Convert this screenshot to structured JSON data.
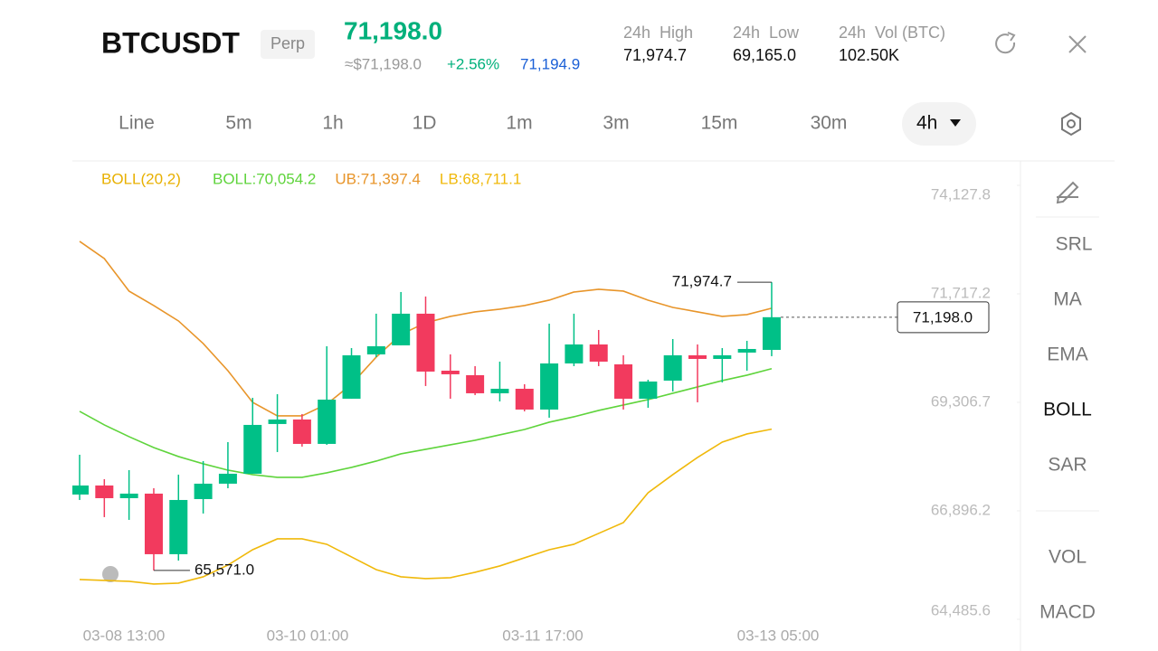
{
  "header": {
    "symbol": "BTCUSDT",
    "badge": "Perp",
    "price": "71,198.0",
    "approx": "≈$71,198.0",
    "change": "+2.56%",
    "mark_price": "71,194.9",
    "stats": [
      {
        "label": "24h  High",
        "value": "71,974.7"
      },
      {
        "label": "24h  Low",
        "value": "69,165.0"
      },
      {
        "label": "24h  Vol (BTC)",
        "value": "102.50K"
      }
    ]
  },
  "timeframes": [
    "Line",
    "5m",
    "1h",
    "1D",
    "1m",
    "3m",
    "15m",
    "30m"
  ],
  "selected_timeframe": "4h",
  "indicators": [
    "SRL",
    "MA",
    "EMA",
    "BOLL",
    "SAR",
    "VOL",
    "MACD"
  ],
  "active_indicator": "BOLL",
  "chart_data": {
    "type": "candlestick",
    "indicator_label": "BOLL(20,2)",
    "indicator_label_color": "#e8b000",
    "up_color": "#00c087",
    "down_color": "#f23a5e",
    "open": [
      67258,
      67459,
      67177,
      67278,
      65932,
      67157,
      67499,
      67720,
      68825,
      68925,
      68383,
      69387,
      70372,
      70573,
      71276,
      70010,
      69910,
      69508,
      69608,
      69146,
      70171,
      70593,
      70151,
      69387,
      69789,
      70352,
      70271,
      70412,
      70472
    ],
    "high": [
      68142,
      67599,
      67800,
      67398,
      67700,
      68001,
      68423,
      69407,
      69488,
      69046,
      70553,
      70512,
      71276,
      71758,
      71658,
      70372,
      70111,
      70211,
      69709,
      71055,
      71276,
      70914,
      70352,
      69809,
      70713,
      70593,
      70512,
      70673,
      71974.7
    ],
    "low": [
      67137,
      66756,
      66695,
      65571,
      65791,
      66836,
      67398,
      67720,
      68202,
      68323,
      68363,
      69387,
      70312,
      70573,
      69669,
      69387,
      69468,
      69327,
      69106,
      68965,
      70111,
      70111,
      69146,
      69186,
      69548,
      69307,
      69749,
      70010,
      70332
    ],
    "close": [
      67459,
      67177,
      67278,
      65932,
      67137,
      67499,
      67720,
      68805,
      68925,
      68383,
      69367,
      70352,
      70553,
      71276,
      69990,
      69930,
      69508,
      69608,
      69146,
      70171,
      70593,
      70211,
      69387,
      69769,
      70352,
      70271,
      70352,
      70492,
      71198.0
    ],
    "series": [
      {
        "name": "BOLL:70,054.2",
        "color": "#5fd43c",
        "values": [
          69106,
          68805,
          68544,
          68302,
          68102,
          67941,
          67800,
          67700,
          67640,
          67640,
          67740,
          67861,
          68001,
          68162,
          68262,
          68363,
          68463,
          68584,
          68704,
          68865,
          68986,
          69126,
          69247,
          69367,
          69508,
          69649,
          69789,
          69910,
          70054.2
        ]
      },
      {
        "name": "UB:71,397.4",
        "color": "#e8952a",
        "values": [
          72883,
          72501,
          71778,
          71457,
          71115,
          70613,
          70010,
          69307,
          69006,
          69006,
          69267,
          69709,
          70312,
          70814,
          71075,
          71216,
          71316,
          71376,
          71457,
          71577,
          71758,
          71818,
          71778,
          71577,
          71416,
          71316,
          71216,
          71256,
          71397.4
        ]
      },
      {
        "name": "LB:68,711.1",
        "color": "#f0b90b",
        "values": [
          65369,
          65349,
          65329,
          65269,
          65289,
          65430,
          65691,
          66032,
          66273,
          66273,
          66153,
          65872,
          65590,
          65430,
          65389,
          65410,
          65530,
          65671,
          65852,
          66032,
          66153,
          66394,
          66635,
          67298,
          67700,
          68082,
          68423,
          68604,
          68711.1
        ]
      }
    ],
    "ylim": [
      64384,
      74630
    ],
    "yticks": [
      {
        "value": 74127.8,
        "label": "74,127.8"
      },
      {
        "value": 71717.2,
        "label": "71,717.2"
      },
      {
        "value": 69306.7,
        "label": "69,306.7"
      },
      {
        "value": 66896.2,
        "label": "66,896.2"
      },
      {
        "value": 64485.6,
        "label": "64,485.6"
      }
    ],
    "x_labels": [
      "03-08 13:00",
      "03-10 01:00",
      "03-11 17:00",
      "03-13 05:00"
    ],
    "high_label": "71,974.7",
    "low_label": "65,571.0",
    "last_label": "71,198.0"
  }
}
